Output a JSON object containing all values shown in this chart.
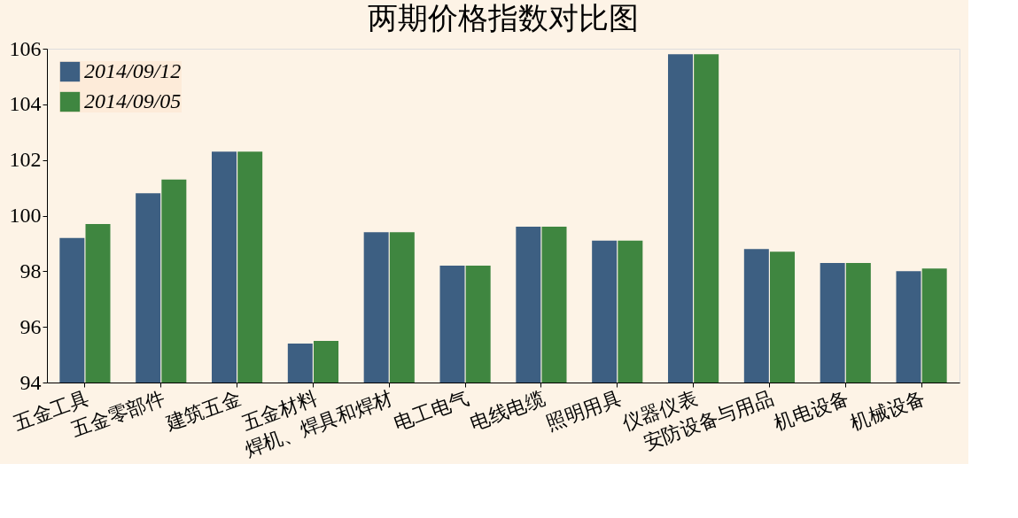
{
  "chart_data": {
    "type": "bar",
    "title": "两期价格指数对比图",
    "categories": [
      "五金工具",
      "五金零部件",
      "建筑五金",
      "五金材料",
      "焊机、焊具和焊材",
      "电工电气",
      "电线电缆",
      "照明用具",
      "仪器仪表",
      "安防设备与用品",
      "机电设备",
      "机械设备"
    ],
    "series": [
      {
        "name": "2014/09/12",
        "color": "#3d5f82",
        "values": [
          99.2,
          100.8,
          102.3,
          95.4,
          99.4,
          98.2,
          99.6,
          99.1,
          105.8,
          98.8,
          98.3,
          98.0
        ]
      },
      {
        "name": "2014/09/05",
        "color": "#3f8640",
        "values": [
          99.7,
          101.3,
          102.3,
          95.5,
          99.4,
          98.2,
          99.6,
          99.1,
          105.8,
          98.7,
          98.3,
          98.1
        ]
      }
    ],
    "ylim": [
      94,
      106
    ],
    "yticks": [
      94,
      96,
      98,
      100,
      102,
      104,
      106
    ],
    "grid": false,
    "legend": "top left"
  }
}
